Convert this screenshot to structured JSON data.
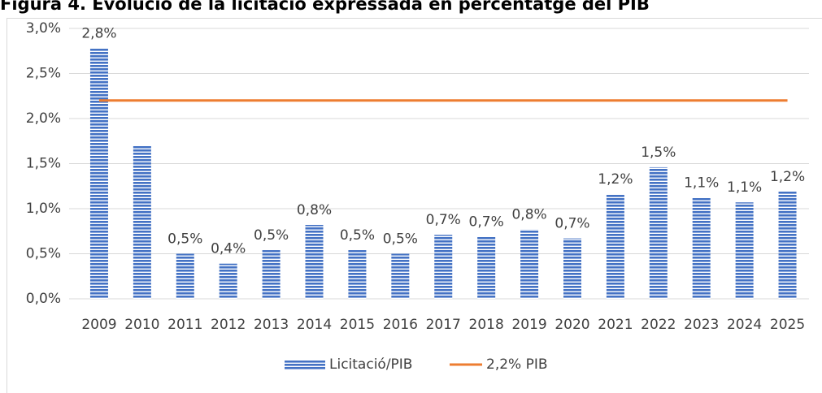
{
  "chart_data": {
    "type": "bar",
    "title": "Figura 4. Evolució de la licitació expressada en percentatge del PIB",
    "categories": [
      "2009",
      "2010",
      "2011",
      "2012",
      "2013",
      "2014",
      "2015",
      "2016",
      "2017",
      "2018",
      "2019",
      "2020",
      "2021",
      "2022",
      "2023",
      "2024",
      "2025"
    ],
    "series": [
      {
        "name": "Licitació/PIB",
        "type": "bar",
        "color": "#4472c4",
        "values": [
          2.78,
          1.7,
          0.5,
          0.39,
          0.54,
          0.82,
          0.54,
          0.5,
          0.71,
          0.69,
          0.77,
          0.67,
          1.16,
          1.46,
          1.12,
          1.07,
          1.19
        ],
        "value_labels": [
          "2,8%",
          null,
          "0,5%",
          "0,4%",
          "0,5%",
          "0,8%",
          "0,5%",
          "0,5%",
          "0,7%",
          "0,7%",
          "0,8%",
          "0,7%",
          "1,2%",
          "1,5%",
          "1,1%",
          "1,1%",
          "1,2%"
        ]
      },
      {
        "name": "2,2% PIB",
        "type": "line",
        "color": "#ed7d31",
        "values": [
          2.2,
          2.2,
          2.2,
          2.2,
          2.2,
          2.2,
          2.2,
          2.2,
          2.2,
          2.2,
          2.2,
          2.2,
          2.2,
          2.2,
          2.2,
          2.2,
          2.2
        ]
      }
    ],
    "ylim": [
      0,
      3
    ],
    "yticks": [
      {
        "value": 0,
        "label": "0,0%"
      },
      {
        "value": 0.5,
        "label": "0,5%"
      },
      {
        "value": 1,
        "label": "1,0%"
      },
      {
        "value": 1.5,
        "label": "1,5%"
      },
      {
        "value": 2,
        "label": "2,0%"
      },
      {
        "value": 2.5,
        "label": "2,5%"
      },
      {
        "value": 3,
        "label": "3,0%"
      }
    ],
    "grid": true,
    "legend": "bottom"
  }
}
